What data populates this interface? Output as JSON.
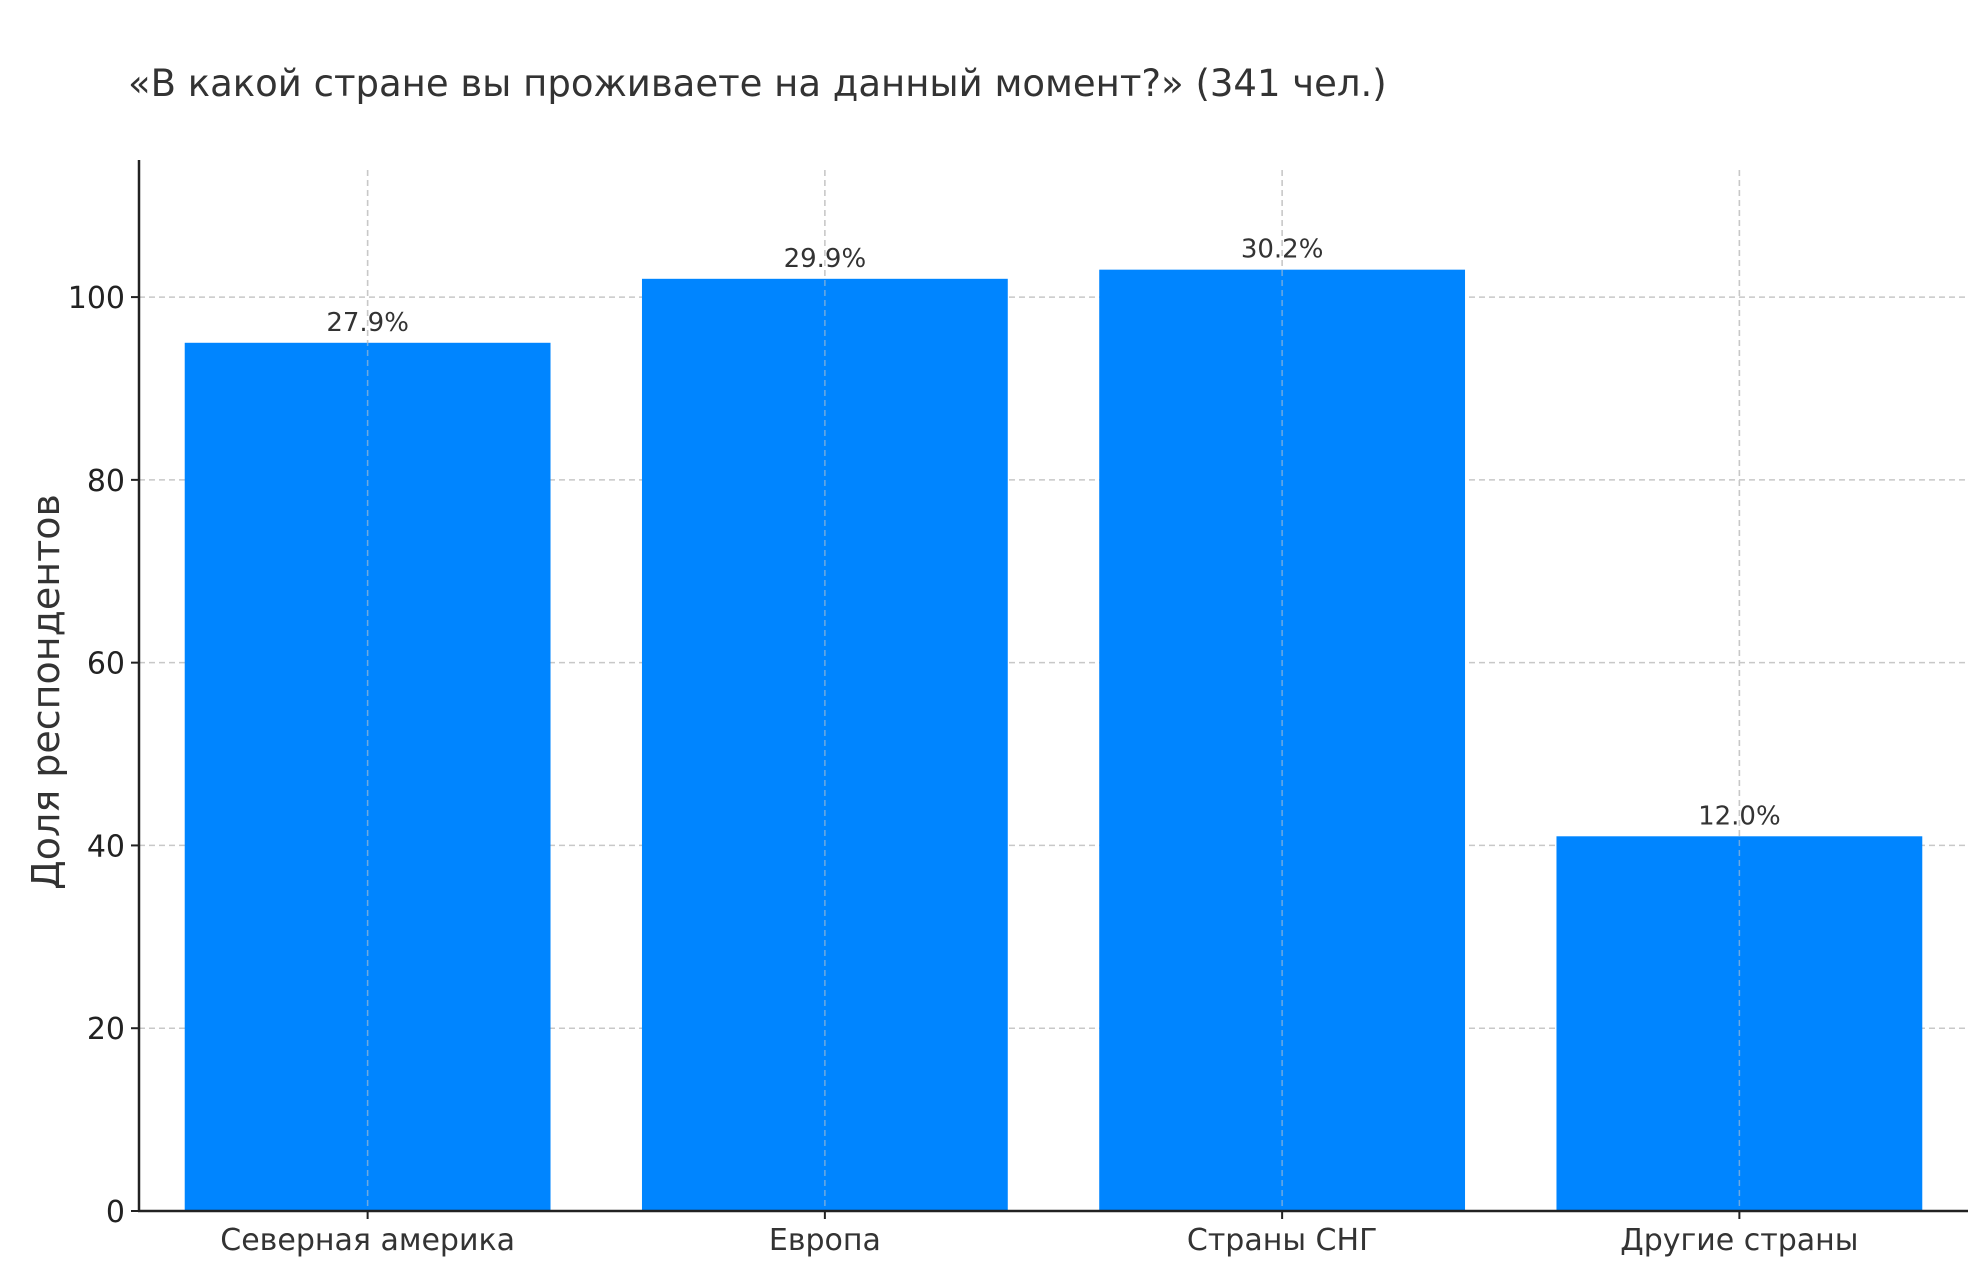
{
  "chart_data": {
    "type": "bar",
    "title": "«В какой стране вы проживаете на данный момент?» (341 чел.)",
    "xlabel": "",
    "ylabel": "Доля респондентов",
    "categories": [
      "Северная америка",
      "Европа",
      "Страны СНГ",
      "Другие страны"
    ],
    "values": [
      95,
      102,
      103,
      41
    ],
    "data_labels": [
      "27.9%",
      "29.9%",
      "30.2%",
      "12.0%"
    ],
    "ylim": [
      0,
      115
    ],
    "yticks": [
      0,
      20,
      40,
      60,
      80,
      100
    ],
    "grid": true,
    "bar_color": "#0085FF",
    "grid_color": "#c8c8c8"
  }
}
